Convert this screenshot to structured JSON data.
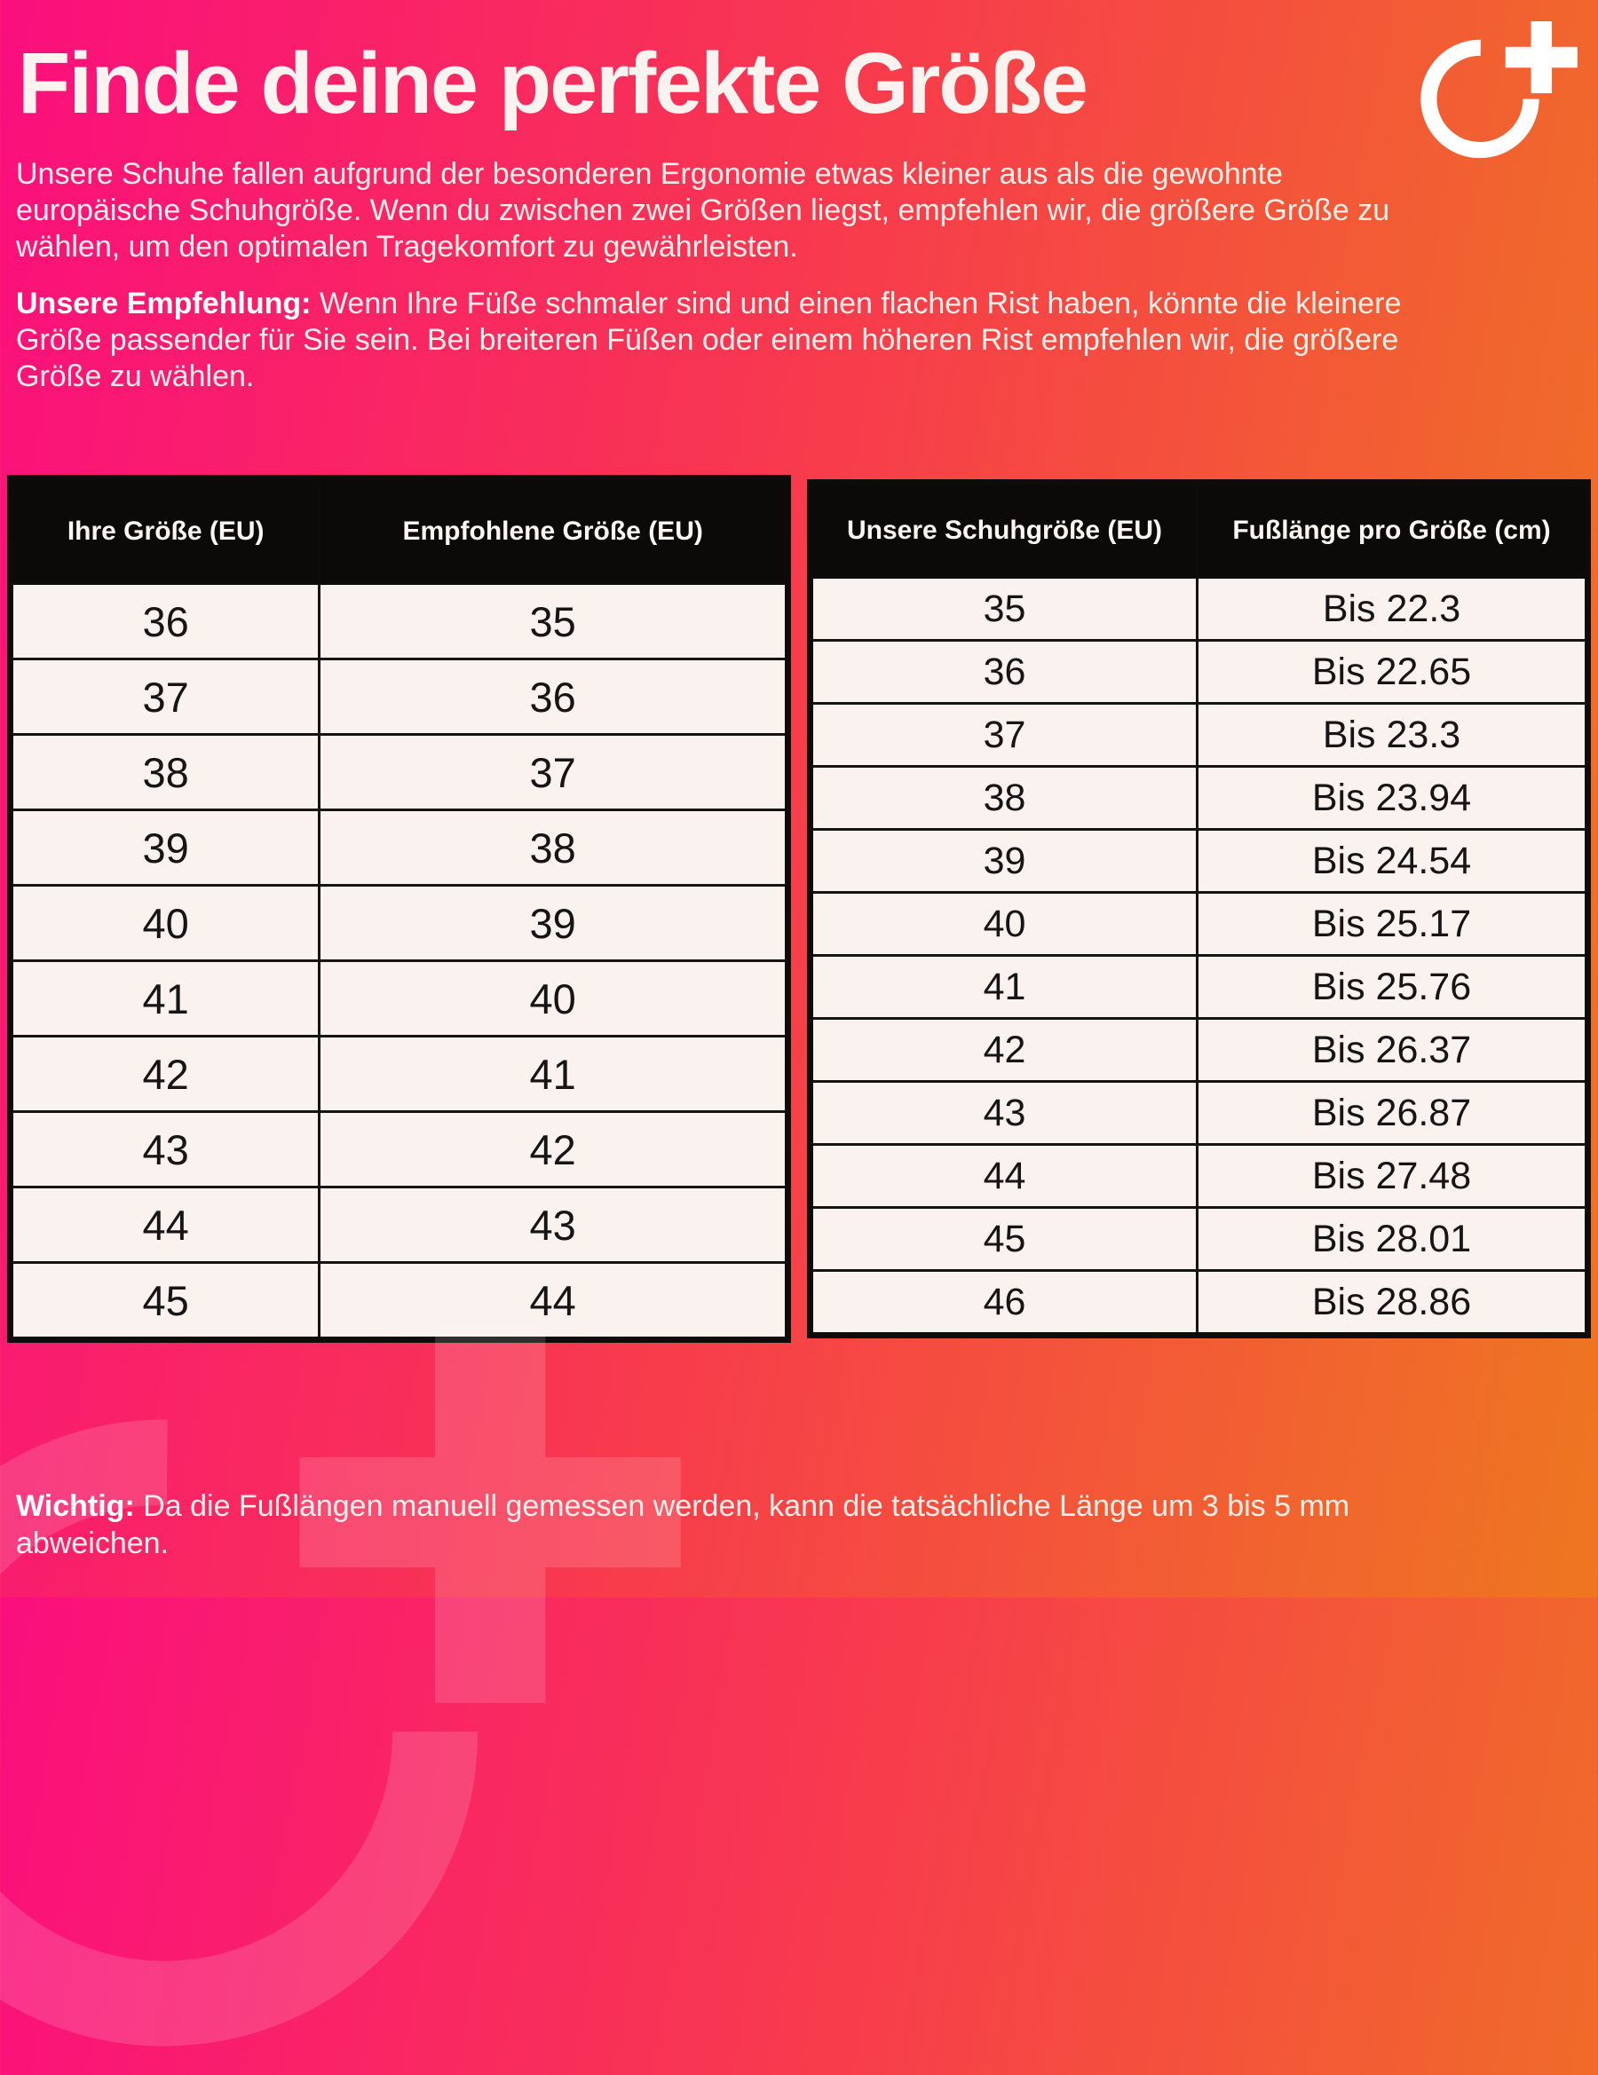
{
  "page": {
    "title": "Finde deine perfekte Größe",
    "intro": "Unsere Schuhe fallen aufgrund der besonderen Ergonomie etwas kleiner aus als die gewohnte europäische Schuhgröße. Wenn du zwischen zwei Größen liegst, empfehlen wir, die größere Größe zu wählen, um den optimalen Tragekomfort zu gewährleisten.",
    "recommendation_label": "Unsere Empfehlung:",
    "recommendation_text": " Wenn Ihre Füße schmaler sind und einen flachen Rist haben, könnte die kleinere Größe passender für Sie sein. Bei breiteren Füßen oder einem höheren Rist empfehlen wir, die größere Größe zu wählen.",
    "note_label": "Wichtig:",
    "note_text": " Da die Fußlängen manuell gemessen werden, kann die tatsächliche Länge um 3 bis 5 mm abweichen."
  },
  "logo": {
    "name": "circle-plus-brand-mark"
  },
  "colors": {
    "gradient_start_pink": "#fa0f7d",
    "gradient_mid_red": "#f8384f",
    "gradient_end_orange": "#ee7720",
    "table_header_bg": "#0c0909",
    "table_cell_bg": "#f9f2ef",
    "text_white": "#fceee9"
  },
  "size_table": {
    "headers": [
      "Ihre Größe (EU)",
      "Empfohlene Größe (EU)"
    ],
    "rows": [
      [
        "36",
        "35"
      ],
      [
        "37",
        "36"
      ],
      [
        "38",
        "37"
      ],
      [
        "39",
        "38"
      ],
      [
        "40",
        "39"
      ],
      [
        "41",
        "40"
      ],
      [
        "42",
        "41"
      ],
      [
        "43",
        "42"
      ],
      [
        "44",
        "43"
      ],
      [
        "45",
        "44"
      ]
    ]
  },
  "foot_length_table": {
    "headers": [
      "Unsere Schuhgröße (EU)",
      "Fußlänge pro Größe (cm)"
    ],
    "rows": [
      [
        "35",
        "Bis 22.3"
      ],
      [
        "36",
        "Bis 22.65"
      ],
      [
        "37",
        "Bis 23.3"
      ],
      [
        "38",
        "Bis 23.94"
      ],
      [
        "39",
        "Bis 24.54"
      ],
      [
        "40",
        "Bis 25.17"
      ],
      [
        "41",
        "Bis 25.76"
      ],
      [
        "42",
        "Bis 26.37"
      ],
      [
        "43",
        "Bis 26.87"
      ],
      [
        "44",
        "Bis 27.48"
      ],
      [
        "45",
        "Bis 28.01"
      ],
      [
        "46",
        "Bis 28.86"
      ]
    ]
  }
}
